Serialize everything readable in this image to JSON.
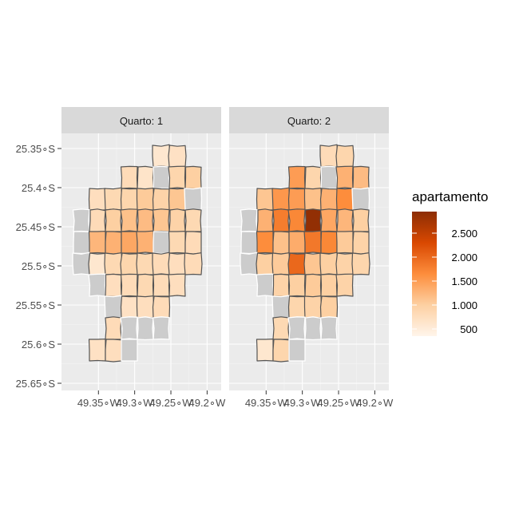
{
  "chart_data": {
    "type": "choropleth-map",
    "facet_variable": "Quarto",
    "facets": [
      {
        "label": "Quarto: 1",
        "neighborhoods": [
          {
            "row": 0,
            "col": 5,
            "value": 600
          },
          {
            "row": 0,
            "col": 6,
            "value": 700
          },
          {
            "row": 1,
            "col": 3,
            "value": 800
          },
          {
            "row": 1,
            "col": 4,
            "value": 650
          },
          {
            "row": 1,
            "col": 5,
            "value": null
          },
          {
            "row": 1,
            "col": 6,
            "value": 900
          },
          {
            "row": 1,
            "col": 7,
            "value": 1000
          },
          {
            "row": 2,
            "col": 1,
            "value": 750
          },
          {
            "row": 2,
            "col": 2,
            "value": 850
          },
          {
            "row": 2,
            "col": 3,
            "value": 900
          },
          {
            "row": 2,
            "col": 4,
            "value": 1050
          },
          {
            "row": 2,
            "col": 5,
            "value": 950
          },
          {
            "row": 2,
            "col": 6,
            "value": 1100
          },
          {
            "row": 2,
            "col": 7,
            "value": null
          },
          {
            "row": 3,
            "col": 0,
            "value": null
          },
          {
            "row": 3,
            "col": 1,
            "value": 800
          },
          {
            "row": 3,
            "col": 2,
            "value": 1000
          },
          {
            "row": 3,
            "col": 3,
            "value": 1150
          },
          {
            "row": 3,
            "col": 4,
            "value": 1200
          },
          {
            "row": 3,
            "col": 5,
            "value": 1100
          },
          {
            "row": 3,
            "col": 6,
            "value": 950
          },
          {
            "row": 3,
            "col": 7,
            "value": 850
          },
          {
            "row": 4,
            "col": 0,
            "value": null
          },
          {
            "row": 4,
            "col": 1,
            "value": 1250
          },
          {
            "row": 4,
            "col": 2,
            "value": 1300
          },
          {
            "row": 4,
            "col": 3,
            "value": 1400
          },
          {
            "row": 4,
            "col": 4,
            "value": 1300
          },
          {
            "row": 4,
            "col": 5,
            "value": null
          },
          {
            "row": 4,
            "col": 6,
            "value": 850
          },
          {
            "row": 4,
            "col": 7,
            "value": 800
          },
          {
            "row": 5,
            "col": 0,
            "value": null
          },
          {
            "row": 5,
            "col": 1,
            "value": 600
          },
          {
            "row": 5,
            "col": 2,
            "value": 850
          },
          {
            "row": 5,
            "col": 3,
            "value": 900
          },
          {
            "row": 5,
            "col": 4,
            "value": 850
          },
          {
            "row": 5,
            "col": 5,
            "value": 800
          },
          {
            "row": 5,
            "col": 6,
            "value": 750
          },
          {
            "row": 5,
            "col": 7,
            "value": 800
          },
          {
            "row": 6,
            "col": 1,
            "value": null
          },
          {
            "row": 6,
            "col": 2,
            "value": 750
          },
          {
            "row": 6,
            "col": 3,
            "value": 800
          },
          {
            "row": 6,
            "col": 4,
            "value": 850
          },
          {
            "row": 6,
            "col": 5,
            "value": 800
          },
          {
            "row": 6,
            "col": 6,
            "value": 750
          },
          {
            "row": 7,
            "col": 2,
            "value": null
          },
          {
            "row": 7,
            "col": 3,
            "value": 700
          },
          {
            "row": 7,
            "col": 4,
            "value": 750
          },
          {
            "row": 7,
            "col": 5,
            "value": 800
          },
          {
            "row": 8,
            "col": 2,
            "value": 800
          },
          {
            "row": 8,
            "col": 3,
            "value": null
          },
          {
            "row": 8,
            "col": 4,
            "value": null
          },
          {
            "row": 8,
            "col": 5,
            "value": null
          },
          {
            "row": 9,
            "col": 1,
            "value": 700
          },
          {
            "row": 9,
            "col": 2,
            "value": 750
          },
          {
            "row": 9,
            "col": 3,
            "value": null
          }
        ]
      },
      {
        "label": "Quarto: 2",
        "neighborhoods": [
          {
            "row": 0,
            "col": 5,
            "value": 800
          },
          {
            "row": 0,
            "col": 6,
            "value": 900
          },
          {
            "row": 1,
            "col": 3,
            "value": 1500
          },
          {
            "row": 1,
            "col": 4,
            "value": 900
          },
          {
            "row": 1,
            "col": 5,
            "value": null
          },
          {
            "row": 1,
            "col": 6,
            "value": 1300
          },
          {
            "row": 1,
            "col": 7,
            "value": 1200
          },
          {
            "row": 2,
            "col": 1,
            "value": 1100
          },
          {
            "row": 2,
            "col": 2,
            "value": 1550
          },
          {
            "row": 2,
            "col": 3,
            "value": 1500
          },
          {
            "row": 2,
            "col": 4,
            "value": 1150
          },
          {
            "row": 2,
            "col": 5,
            "value": 1300
          },
          {
            "row": 2,
            "col": 6,
            "value": 1650
          },
          {
            "row": 2,
            "col": 7,
            "value": null
          },
          {
            "row": 3,
            "col": 0,
            "value": null
          },
          {
            "row": 3,
            "col": 1,
            "value": 1300
          },
          {
            "row": 3,
            "col": 2,
            "value": 1800
          },
          {
            "row": 3,
            "col": 3,
            "value": 1700
          },
          {
            "row": 3,
            "col": 4,
            "value": 2900
          },
          {
            "row": 3,
            "col": 5,
            "value": 1400
          },
          {
            "row": 3,
            "col": 6,
            "value": 1250
          },
          {
            "row": 3,
            "col": 7,
            "value": 1000
          },
          {
            "row": 4,
            "col": 0,
            "value": null
          },
          {
            "row": 4,
            "col": 1,
            "value": 1650
          },
          {
            "row": 4,
            "col": 2,
            "value": 1150
          },
          {
            "row": 4,
            "col": 3,
            "value": 1350
          },
          {
            "row": 4,
            "col": 4,
            "value": 1850
          },
          {
            "row": 4,
            "col": 5,
            "value": 1700
          },
          {
            "row": 4,
            "col": 6,
            "value": 1050
          },
          {
            "row": 4,
            "col": 7,
            "value": 950
          },
          {
            "row": 5,
            "col": 0,
            "value": null
          },
          {
            "row": 5,
            "col": 1,
            "value": 1000
          },
          {
            "row": 5,
            "col": 2,
            "value": 1050
          },
          {
            "row": 5,
            "col": 3,
            "value": 2000
          },
          {
            "row": 5,
            "col": 4,
            "value": 1100
          },
          {
            "row": 5,
            "col": 5,
            "value": 1000
          },
          {
            "row": 5,
            "col": 6,
            "value": 950
          },
          {
            "row": 5,
            "col": 7,
            "value": 900
          },
          {
            "row": 6,
            "col": 1,
            "value": null
          },
          {
            "row": 6,
            "col": 2,
            "value": 950
          },
          {
            "row": 6,
            "col": 3,
            "value": 1000
          },
          {
            "row": 6,
            "col": 4,
            "value": 1050
          },
          {
            "row": 6,
            "col": 5,
            "value": 1000
          },
          {
            "row": 6,
            "col": 6,
            "value": 950
          },
          {
            "row": 7,
            "col": 2,
            "value": null
          },
          {
            "row": 7,
            "col": 3,
            "value": 900
          },
          {
            "row": 7,
            "col": 4,
            "value": 950
          },
          {
            "row": 7,
            "col": 5,
            "value": 1000
          },
          {
            "row": 8,
            "col": 2,
            "value": 850
          },
          {
            "row": 8,
            "col": 3,
            "value": null
          },
          {
            "row": 8,
            "col": 4,
            "value": null
          },
          {
            "row": 8,
            "col": 5,
            "value": null
          },
          {
            "row": 9,
            "col": 1,
            "value": 600
          },
          {
            "row": 9,
            "col": 2,
            "value": 900
          },
          {
            "row": 9,
            "col": 3,
            "value": null
          }
        ]
      }
    ],
    "y_ticks": [
      "25.35∘S",
      "25.4∘S",
      "25.45∘S",
      "25.5∘S",
      "25.55∘S",
      "25.6∘S",
      "25.65∘S"
    ],
    "x_ticks": [
      "49.35∘W",
      "49.3∘W",
      "49.25∘W",
      "49.2∘W"
    ],
    "xlim": [
      -49.4,
      -49.17
    ],
    "ylim": [
      -25.66,
      -25.32
    ],
    "legend": {
      "title": "apartamento",
      "labels": [
        "2.500",
        "2.000",
        "1.500",
        "1.000",
        "500"
      ],
      "breaks": [
        2500,
        2000,
        1500,
        1000,
        500
      ],
      "range": [
        350,
        2950
      ],
      "colors": [
        "#fff5eb",
        "#fdd0a2",
        "#fd8d3c",
        "#d94801",
        "#8c2d04"
      ],
      "placement": "right"
    },
    "na_color": "#cccccc",
    "panel_background": "#ebebeb",
    "grid": true
  }
}
